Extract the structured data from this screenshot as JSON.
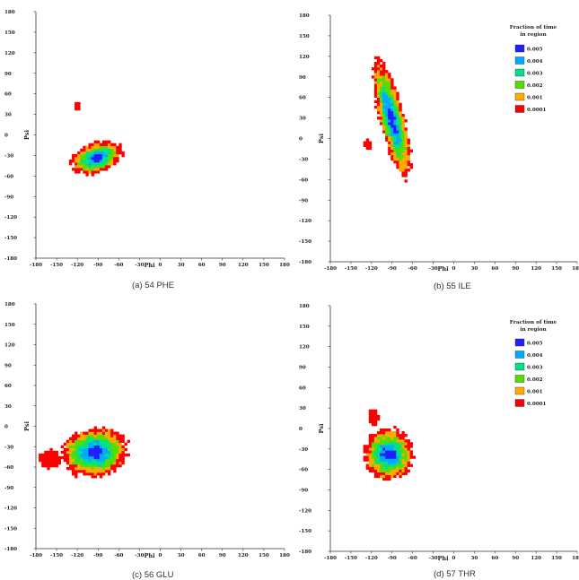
{
  "colors": {
    "bins": [
      "#ff0000",
      "#ffaa00",
      "#55dd00",
      "#00e08a",
      "#00aaff",
      "#2020ff"
    ],
    "bin_names": [
      "red",
      "orange",
      "green",
      "teal",
      "blue",
      "dark blue"
    ]
  },
  "chart_data": [
    {
      "type": "heatmap",
      "caption": "(a)  54 PHE",
      "xlabel": "Phi",
      "ylabel": "Psi",
      "xlim": [
        -180,
        180
      ],
      "ylim": [
        -180,
        180
      ],
      "xticks": [
        "-180",
        "-150",
        "-120",
        "-90",
        "-60",
        "-30",
        "0",
        "30",
        "60",
        "90",
        "120",
        "150",
        "180"
      ],
      "yticks": [
        "-180",
        "-150",
        "-120",
        "-90",
        "-60",
        "-30",
        "0",
        "30",
        "60",
        "90",
        "120",
        "150",
        "180"
      ],
      "grid": false,
      "legend": null,
      "regions": [
        {
          "center": [
            -92,
            -33
          ],
          "radius": [
            38,
            22
          ],
          "rotation_deg": -18,
          "bins": [
            0.0001,
            0.001,
            0.002,
            0.003,
            0.004,
            0.005
          ]
        },
        {
          "center": [
            -120,
            42
          ],
          "radius": [
            6,
            5
          ],
          "rotation_deg": 0,
          "bins": [
            0.0001
          ]
        }
      ]
    },
    {
      "type": "heatmap",
      "caption": "(b)  55 ILE",
      "xlabel": "Phi",
      "ylabel": "Psi",
      "xlim": [
        -180,
        180
      ],
      "ylim": [
        -180,
        180
      ],
      "xticks": [
        "-180",
        "-150",
        "-120",
        "-90",
        "-60",
        "-30",
        "0",
        "30",
        "60",
        "90",
        "120",
        "150",
        "180"
      ],
      "yticks": [
        "-180",
        "-150",
        "-120",
        "-90",
        "-60",
        "-30",
        "0",
        "30",
        "60",
        "90",
        "120",
        "150",
        "180"
      ],
      "grid": false,
      "legend": {
        "title": [
          "Fraction of time",
          "in region"
        ],
        "entries": [
          "0.005",
          "0.004",
          "0.003",
          "0.002",
          "0.001",
          "0.0001"
        ],
        "placement": "top-right"
      },
      "regions": [
        {
          "center": [
            -90,
            28
          ],
          "radius": [
            18,
            88
          ],
          "rotation_deg": -14,
          "bins": [
            0.0001,
            0.001,
            0.002,
            0.003,
            0.004,
            0.005
          ]
        },
        {
          "center": [
            -125,
            -10
          ],
          "radius": [
            6,
            8
          ],
          "rotation_deg": 0,
          "bins": [
            0.0001
          ]
        }
      ]
    },
    {
      "type": "heatmap",
      "caption": "(c)  56 GLU",
      "xlabel": "Phi",
      "ylabel": "Psi",
      "xlim": [
        -180,
        180
      ],
      "ylim": [
        -180,
        180
      ],
      "xticks": [
        "-180",
        "-150",
        "-120",
        "-90",
        "-60",
        "-30",
        "0",
        "30",
        "60",
        "90",
        "120",
        "150",
        "180"
      ],
      "yticks": [
        "-180",
        "-150",
        "-120",
        "-90",
        "-60",
        "-30",
        "0",
        "30",
        "60",
        "90",
        "120",
        "150",
        "180"
      ],
      "grid": false,
      "legend": null,
      "regions": [
        {
          "center": [
            -95,
            -38
          ],
          "radius": [
            48,
            36
          ],
          "rotation_deg": -10,
          "bins": [
            0.0001,
            0.001,
            0.002,
            0.003,
            0.004,
            0.005
          ]
        },
        {
          "center": [
            -160,
            -48
          ],
          "radius": [
            16,
            14
          ],
          "rotation_deg": 0,
          "bins": [
            0.0001
          ]
        }
      ]
    },
    {
      "type": "heatmap",
      "caption": "(d)  57 THR",
      "xlabel": "Phi",
      "ylabel": "Psi",
      "xlim": [
        -180,
        180
      ],
      "ylim": [
        -180,
        180
      ],
      "xticks": [
        "-180",
        "-150",
        "-120",
        "-90",
        "-60",
        "-30",
        "0",
        "30",
        "60",
        "90",
        "120",
        "150",
        "180"
      ],
      "yticks": [
        "-180",
        "-150",
        "-120",
        "-90",
        "-60",
        "-30",
        "0",
        "30",
        "60",
        "90",
        "120",
        "150",
        "180"
      ],
      "grid": false,
      "legend": {
        "title": [
          "Fraction of time",
          "in region"
        ],
        "entries": [
          "0.005",
          "0.004",
          "0.003",
          "0.002",
          "0.001",
          "0.0001"
        ],
        "placement": "top-right"
      },
      "regions": [
        {
          "center": [
            -95,
            -38
          ],
          "radius": [
            35,
            38
          ],
          "rotation_deg": -15,
          "bins": [
            0.0001,
            0.001,
            0.002,
            0.003,
            0.004,
            0.005
          ]
        },
        {
          "center": [
            -117,
            18
          ],
          "radius": [
            8,
            12
          ],
          "rotation_deg": 0,
          "bins": [
            0.0001
          ]
        }
      ]
    }
  ]
}
